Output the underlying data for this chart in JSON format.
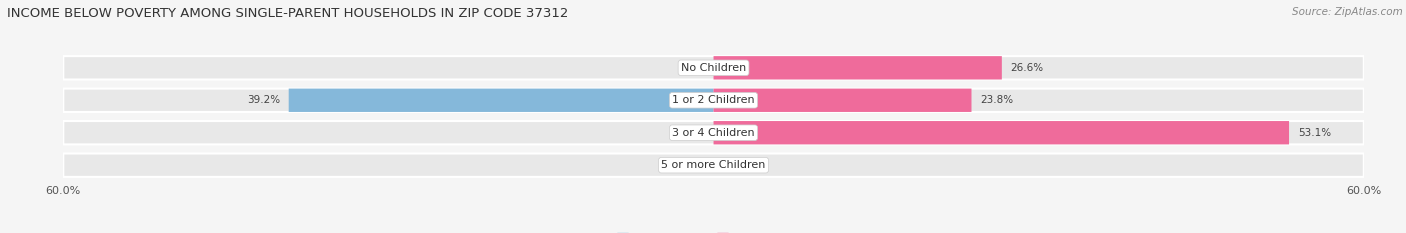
{
  "title": "INCOME BELOW POVERTY AMONG SINGLE-PARENT HOUSEHOLDS IN ZIP CODE 37312",
  "source": "Source: ZipAtlas.com",
  "categories": [
    "No Children",
    "1 or 2 Children",
    "3 or 4 Children",
    "5 or more Children"
  ],
  "single_father": [
    0.0,
    39.2,
    0.0,
    0.0
  ],
  "single_mother": [
    26.6,
    23.8,
    53.1,
    0.0
  ],
  "father_color": "#85B8DA",
  "mother_color": "#EF6B9B",
  "father_color_light": "#C5DCF0",
  "mother_color_light": "#F9C0D8",
  "xlim": 60.0,
  "bar_height": 0.72,
  "row_bg_color": "#E8E8E8",
  "bg_color": "#F5F5F5",
  "title_fontsize": 9.5,
  "source_fontsize": 7.5,
  "label_fontsize": 7.5,
  "tick_fontsize": 8,
  "legend_fontsize": 8,
  "category_fontsize": 8,
  "fig_width": 14.06,
  "fig_height": 2.33,
  "dpi": 100
}
